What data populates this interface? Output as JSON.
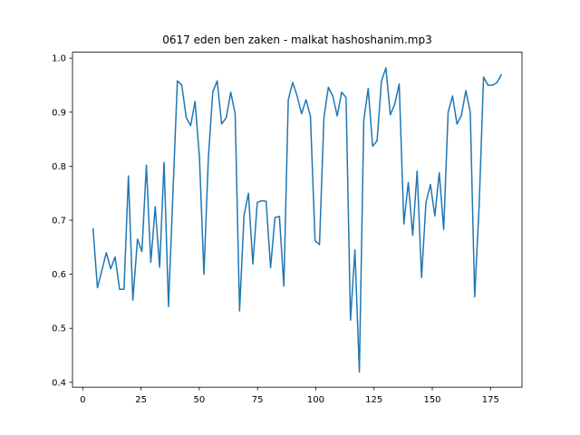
{
  "chart_data": {
    "type": "line",
    "title": "0617 eden ben zaken - malkat hashoshanim.mp3",
    "x": [
      4.4,
      6.3,
      8.2,
      10.1,
      12.0,
      13.9,
      15.8,
      17.7,
      19.6,
      21.5,
      23.5,
      25.4,
      27.3,
      29.2,
      31.1,
      33.0,
      34.9,
      36.8,
      38.7,
      40.6,
      42.5,
      44.4,
      46.3,
      48.2,
      50.1,
      52.0,
      53.9,
      55.8,
      57.7,
      59.6,
      61.6,
      63.5,
      65.4,
      67.3,
      69.2,
      71.1,
      73.0,
      74.9,
      76.8,
      78.7,
      80.6,
      82.5,
      84.4,
      86.3,
      88.2,
      90.1,
      92.0,
      93.9,
      95.8,
      97.7,
      99.7,
      101.6,
      103.5,
      105.4,
      107.3,
      109.2,
      111.1,
      113.0,
      114.9,
      116.8,
      118.7,
      120.6,
      122.5,
      124.4,
      126.3,
      128.2,
      130.1,
      132.0,
      133.9,
      135.8,
      137.8,
      139.7,
      141.6,
      143.5,
      145.4,
      147.3,
      149.2,
      151.1,
      153.0,
      154.9,
      156.8,
      158.7,
      160.6,
      162.5,
      164.4,
      166.3,
      168.2,
      170.1,
      172.0,
      173.9,
      175.9,
      177.8,
      179.7
    ],
    "series": [
      {
        "color": "#1f77b4",
        "values": [
          0.685,
          0.575,
          0.607,
          0.64,
          0.61,
          0.632,
          0.572,
          0.572,
          0.782,
          0.552,
          0.665,
          0.642,
          0.802,
          0.622,
          0.725,
          0.613,
          0.807,
          0.54,
          0.75,
          0.958,
          0.95,
          0.89,
          0.875,
          0.92,
          0.815,
          0.6,
          0.815,
          0.937,
          0.958,
          0.878,
          0.89,
          0.937,
          0.897,
          0.532,
          0.709,
          0.75,
          0.619,
          0.733,
          0.736,
          0.735,
          0.612,
          0.705,
          0.707,
          0.578,
          0.923,
          0.955,
          0.93,
          0.897,
          0.923,
          0.893,
          0.662,
          0.655,
          0.89,
          0.946,
          0.93,
          0.893,
          0.937,
          0.927,
          0.515,
          0.645,
          0.419,
          0.885,
          0.944,
          0.837,
          0.847,
          0.958,
          0.982,
          0.895,
          0.915,
          0.952,
          0.693,
          0.77,
          0.672,
          0.791,
          0.594,
          0.733,
          0.766,
          0.708,
          0.788,
          0.683,
          0.9,
          0.93,
          0.878,
          0.894,
          0.94,
          0.9,
          0.558,
          0.725,
          0.965,
          0.95,
          0.95,
          0.955,
          0.97
        ]
      }
    ],
    "xlim": [
      -4.4,
      188.5
    ],
    "xticks": [
      0,
      25,
      50,
      75,
      100,
      125,
      150,
      175
    ],
    "ylim": [
      0.391,
      1.011
    ],
    "yticks": [
      0.4,
      0.5,
      0.6,
      0.7,
      0.8,
      0.9,
      {
        "value": 1,
        "label": "1.0"
      }
    ]
  }
}
